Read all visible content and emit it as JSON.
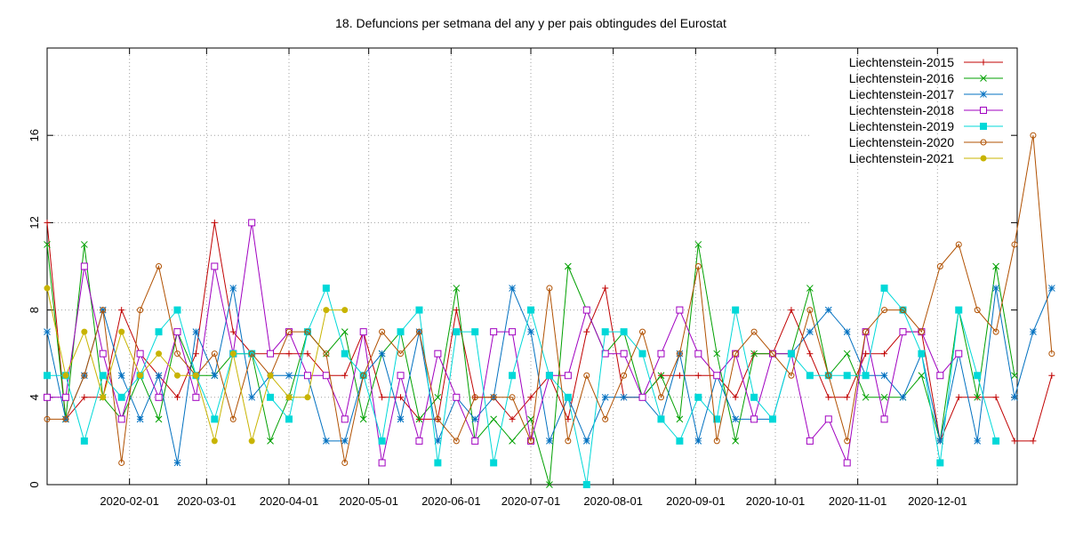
{
  "chart_data": {
    "type": "line",
    "title": "18. Defuncions per setmana del any y per pais obtingudes del Eurostat",
    "xlabel": "",
    "ylabel": "",
    "x_start": "2020-01-01",
    "x_interval_days": 7,
    "xlim": [
      "2020-01-01",
      "2020-12-31"
    ],
    "ylim": [
      0,
      20
    ],
    "yticks": [
      0,
      4,
      8,
      12,
      16
    ],
    "xticks": [
      "2020-02-01",
      "2020-03-01",
      "2020-04-01",
      "2020-05-01",
      "2020-06-01",
      "2020-07-01",
      "2020-08-01",
      "2020-09-01",
      "2020-10-01",
      "2020-11-01",
      "2020-12-01"
    ],
    "grid": true,
    "legend_position": "top-right",
    "series": [
      {
        "name": "Liechtenstein-2015",
        "color": "#c00000",
        "marker": "plus",
        "values": [
          12,
          3,
          4,
          4,
          8,
          6,
          5,
          4,
          6,
          12,
          7,
          6,
          6,
          6,
          6,
          5,
          5,
          7,
          4,
          4,
          3,
          3,
          8,
          4,
          4,
          3,
          4,
          5,
          3,
          7,
          9,
          4,
          4,
          5,
          5,
          5,
          5,
          4,
          6,
          6,
          8,
          6,
          4,
          4,
          6,
          6,
          7,
          7,
          2,
          4,
          4,
          4,
          2,
          2,
          5
        ]
      },
      {
        "name": "Liechtenstein-2016",
        "color": "#00a000",
        "marker": "cross",
        "values": [
          11,
          3,
          11,
          4,
          3,
          5,
          3,
          7,
          5,
          5,
          6,
          6,
          2,
          4,
          7,
          6,
          7,
          3,
          6,
          7,
          3,
          4,
          9,
          2,
          3,
          2,
          3,
          0,
          10,
          8,
          6,
          7,
          4,
          5,
          3,
          11,
          6,
          2,
          6,
          6,
          6,
          9,
          5,
          6,
          4,
          4,
          4,
          5,
          2,
          8,
          4,
          10,
          5
        ]
      },
      {
        "name": "Liechtenstein-2017",
        "color": "#0070c0",
        "marker": "star",
        "values": [
          7,
          3,
          5,
          8,
          5,
          3,
          5,
          1,
          7,
          5,
          9,
          4,
          5,
          5,
          5,
          2,
          2,
          5,
          6,
          3,
          7,
          2,
          4,
          3,
          4,
          9,
          7,
          2,
          4,
          2,
          4,
          4,
          4,
          3,
          6,
          2,
          5,
          3,
          3,
          3,
          6,
          7,
          8,
          7,
          5,
          5,
          4,
          6,
          2,
          6,
          2,
          9,
          4,
          7,
          9
        ]
      },
      {
        "name": "Liechtenstein-2018",
        "color": "#a000c0",
        "marker": "square",
        "values": [
          4,
          4,
          10,
          6,
          3,
          6,
          4,
          7,
          4,
          10,
          6,
          12,
          6,
          7,
          5,
          5,
          3,
          7,
          1,
          5,
          2,
          6,
          4,
          2,
          7,
          7,
          2,
          5,
          5,
          8,
          6,
          6,
          4,
          6,
          8,
          6,
          5,
          6,
          3,
          6,
          6,
          2,
          3,
          1,
          7,
          3,
          7,
          7,
          5,
          6
        ]
      },
      {
        "name": "Liechtenstein-2019",
        "color": "#00d8d8",
        "marker": "filled-square",
        "values": [
          5,
          5,
          2,
          5,
          4,
          5,
          7,
          8,
          5,
          3,
          6,
          6,
          4,
          3,
          7,
          9,
          6,
          5,
          2,
          7,
          8,
          1,
          7,
          7,
          1,
          5,
          8,
          5,
          4,
          0,
          7,
          7,
          6,
          3,
          2,
          4,
          3,
          8,
          4,
          3,
          6,
          5,
          5,
          5,
          5,
          9,
          8,
          6,
          1,
          8,
          5,
          2
        ]
      },
      {
        "name": "Liechtenstein-2020",
        "color": "#b05000",
        "marker": "circle",
        "values": [
          3,
          3,
          5,
          8,
          1,
          8,
          10,
          6,
          5,
          6,
          3,
          6,
          5,
          7,
          7,
          6,
          1,
          5,
          7,
          6,
          7,
          3,
          2,
          4,
          4,
          4,
          2,
          9,
          2,
          5,
          3,
          5,
          7,
          4,
          6,
          10,
          2,
          6,
          7,
          6,
          5,
          8,
          5,
          2,
          7,
          8,
          8,
          7,
          10,
          11,
          8,
          7,
          11,
          16,
          6
        ]
      },
      {
        "name": "Liechtenstein-2021",
        "color": "#c8b400",
        "marker": "filled-circle",
        "values": [
          9,
          5,
          7,
          4,
          7,
          5,
          6,
          5,
          5,
          2,
          6,
          2,
          5,
          4,
          4,
          8,
          8
        ]
      }
    ]
  }
}
